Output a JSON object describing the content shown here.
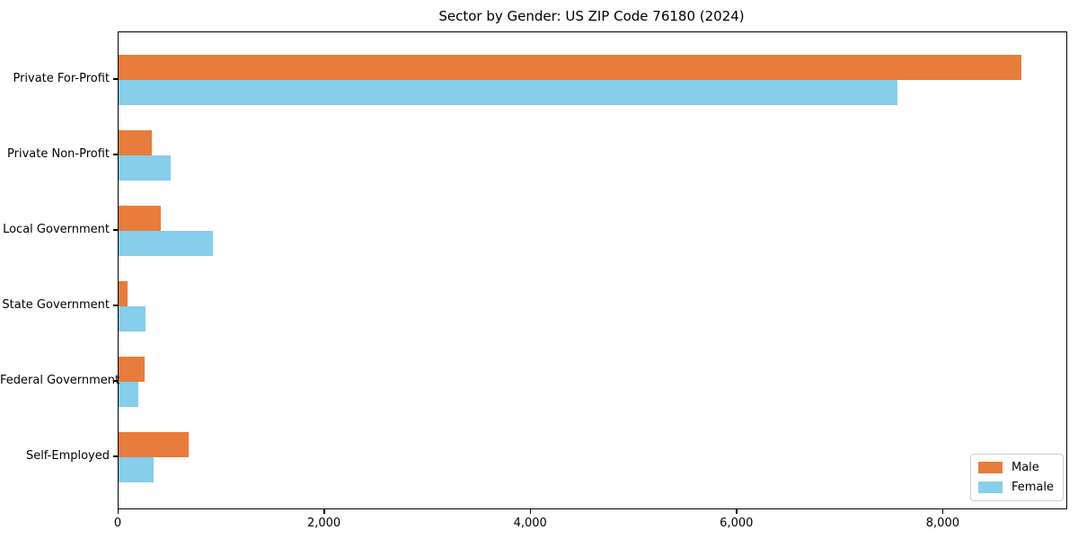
{
  "chart_data": {
    "type": "bar",
    "orientation": "horizontal",
    "title": "Sector by Gender: US ZIP Code 76180 (2024)",
    "categories": [
      "Private For-Profit",
      "Private Non-Profit",
      "Local Government",
      "State Government",
      "Federal Government",
      "Self-Employed"
    ],
    "series": [
      {
        "name": "Male",
        "color": "#e87c3c",
        "values": [
          8750,
          320,
          410,
          90,
          255,
          680
        ]
      },
      {
        "name": "Female",
        "color": "#87ceeb",
        "values": [
          7550,
          505,
          915,
          260,
          190,
          340
        ]
      }
    ],
    "xlabel": "",
    "ylabel": "",
    "xlim": [
      0,
      9190
    ],
    "xticks": [
      0,
      2000,
      4000,
      6000,
      8000
    ],
    "xtick_labels": [
      "0",
      "2,000",
      "4,000",
      "6,000",
      "8,000"
    ],
    "grid": false,
    "legend_position": "lower right",
    "legend_edge_color": "#cccccc",
    "axis_color": "#000000",
    "background_color": "#ffffff"
  }
}
